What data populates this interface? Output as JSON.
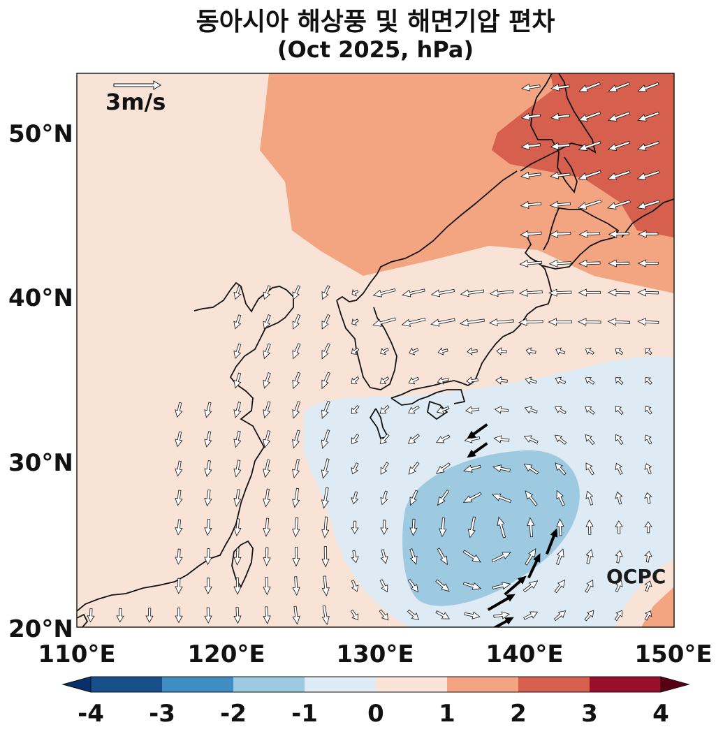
{
  "title": "동아시아 해상풍 및 해면기압 편차",
  "subtitle": "(Oct 2025, hPa)",
  "scale_label": "3m/s",
  "logo_text": "OCPC",
  "lon_labels": [
    "110°E",
    "120°E",
    "130°E",
    "140°E",
    "150°E"
  ],
  "lat_labels": [
    "20°N",
    "30°N",
    "40°N",
    "50°N"
  ],
  "colorbar": {
    "tick_labels": [
      "-4",
      "-3",
      "-2",
      "-1",
      "0",
      "1",
      "2",
      "3",
      "4"
    ],
    "colors": [
      "#08306b",
      "#164f8a",
      "#3f8dc3",
      "#9ecae1",
      "#deebf4",
      "#f9e3d6",
      "#f3a582",
      "#d6604d",
      "#970f28",
      "#5a0013"
    ]
  },
  "land_color": "#f9e3d6",
  "map_data": {
    "extent": {
      "lon": [
        110,
        150
      ],
      "lat": [
        20,
        53.6
      ]
    },
    "wind_scale_ms": 3,
    "slp_anomaly_regions": [
      {
        "level": "1 to 2",
        "color": "#f3a582",
        "area": "northern China, Mongolia and Russian Far East"
      },
      {
        "level": "2 to 3",
        "color": "#d6604d",
        "area": "Russian Far East, Sea of Okhotsk"
      },
      {
        "level": "-1 to 0",
        "color": "#deebf4",
        "area": "south of Japan, East China Sea to western Pacific"
      },
      {
        "level": "-2 to -1",
        "color": "#9ecae1",
        "area": "western Pacific around 25°N 138°E"
      }
    ]
  }
}
